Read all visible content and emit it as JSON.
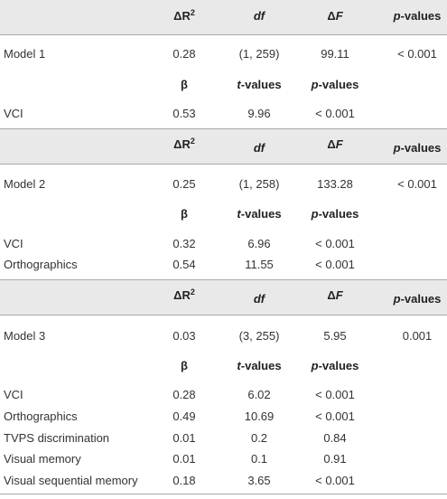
{
  "headers": {
    "delta_r2_prefix": "ΔR",
    "delta_r2_sup": "2",
    "df": "df",
    "delta_f_prefix": "Δ",
    "delta_f_letter": "F",
    "p_values_p": "p",
    "p_values_rest": "-values",
    "beta": "β",
    "t_values_t": "t",
    "t_values_rest": "-values"
  },
  "models": [
    {
      "name": "Model 1",
      "delta_r2": "0.28",
      "df": "(1, 259)",
      "delta_f": "99.11",
      "p": "< 0.001",
      "predictors": [
        {
          "name": "VCI",
          "beta": "0.53",
          "t": "9.96",
          "p": "< 0.001"
        }
      ]
    },
    {
      "name": "Model 2",
      "delta_r2": "0.25",
      "df": "(1, 258)",
      "delta_f": "133.28",
      "p": "< 0.001",
      "predictors": [
        {
          "name": "VCI",
          "beta": "0.32",
          "t": "6.96",
          "p": "< 0.001"
        },
        {
          "name": "Orthographics",
          "beta": "0.54",
          "t": "11.55",
          "p": "< 0.001"
        }
      ]
    },
    {
      "name": "Model 3",
      "delta_r2": "0.03",
      "df": "(3, 255)",
      "delta_f": "5.95",
      "p": "0.001",
      "predictors": [
        {
          "name": "VCI",
          "beta": "0.28",
          "t": "6.02",
          "p": "< 0.001"
        },
        {
          "name": "Orthographics",
          "beta": "0.49",
          "t": "10.69",
          "p": "< 0.001"
        },
        {
          "name": "TVPS discrimination",
          "beta": "0.01",
          "t": "0.2",
          "p": "0.84"
        },
        {
          "name": "Visual memory",
          "beta": "0.01",
          "t": "0.1",
          "p": "0.91"
        },
        {
          "name": "Visual sequential memory",
          "beta": "0.18",
          "t": "3.65",
          "p": "< 0.001"
        }
      ]
    }
  ]
}
